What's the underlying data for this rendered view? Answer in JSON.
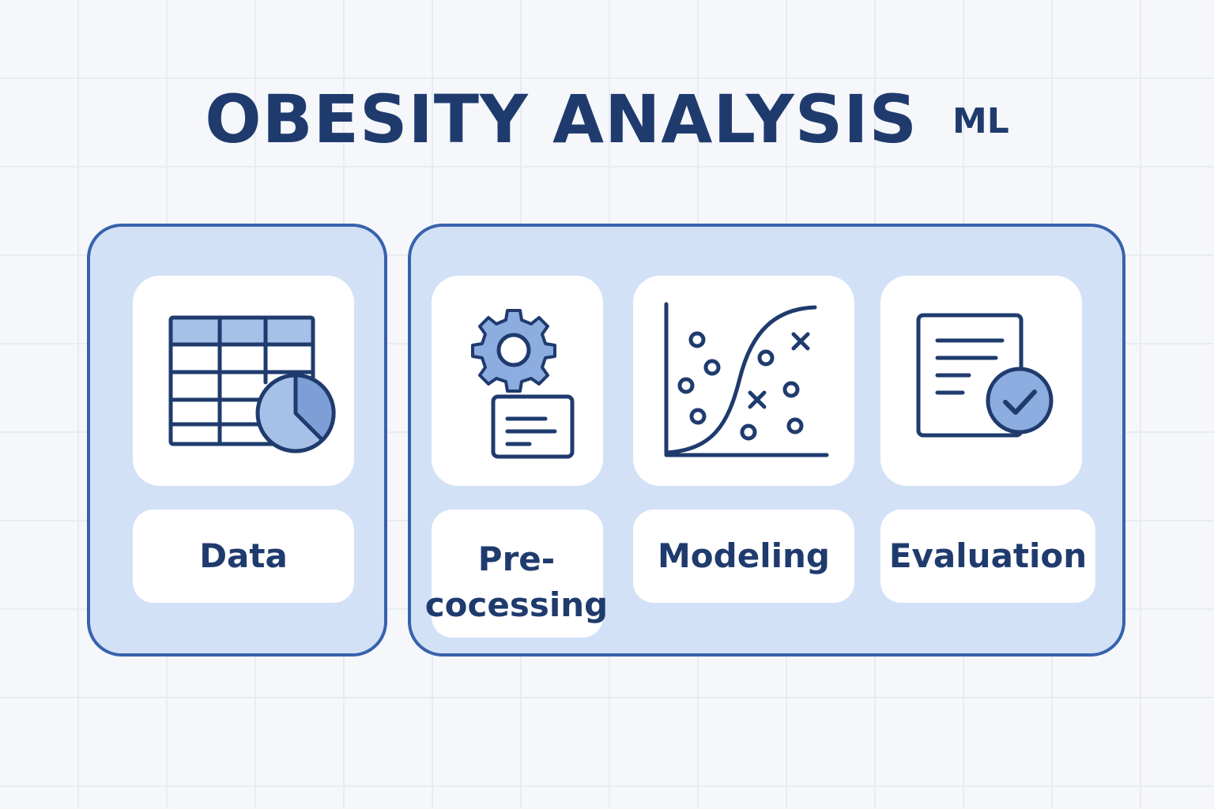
{
  "title": {
    "main": "OBESITY ANALYSIS",
    "sub": "ML"
  },
  "steps": [
    {
      "label": "Data",
      "icon": "table-pie-chart-icon"
    },
    {
      "label": "Pre-\ncocessing",
      "icon": "gear-document-icon"
    },
    {
      "label": "Modeling",
      "icon": "scatter-sigmoid-icon"
    },
    {
      "label": "Evaluation",
      "icon": "document-check-icon"
    }
  ],
  "colors": {
    "panel_fill": "#d3e1f7",
    "panel_border": "#3762ad",
    "icon_stroke": "#1f3b6e",
    "icon_fill": "#8dacdf",
    "text": "#1f3b6e",
    "background": "#f6f7fa"
  }
}
